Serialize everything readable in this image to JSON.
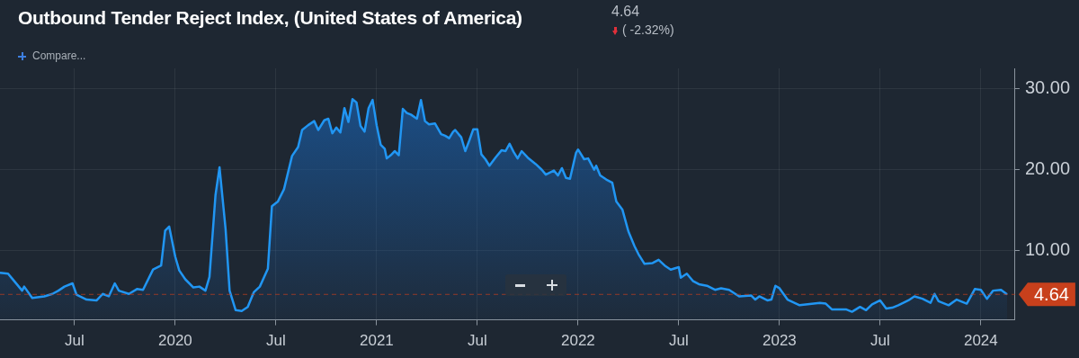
{
  "chart_data": {
    "type": "area",
    "title": "Outbound Tender Reject Index, (United States of America)",
    "annotations": [
      "4.64",
      "( -2.32%)",
      "Compare..."
    ],
    "color": "#2196f3",
    "x": [
      2019.13,
      2019.17,
      2019.19,
      2019.24,
      2019.25,
      2019.29,
      2019.35,
      2019.39,
      2019.42,
      2019.45,
      2019.49,
      2019.51,
      2019.56,
      2019.61,
      2019.64,
      2019.67,
      2019.7,
      2019.72,
      2019.77,
      2019.81,
      2019.84,
      2019.89,
      2019.93,
      2019.95,
      2019.97,
      2020.0,
      2020.02,
      2020.05,
      2020.09,
      2020.12,
      2020.15,
      2020.17,
      2020.2,
      2020.22,
      2020.25,
      2020.27,
      2020.3,
      2020.33,
      2020.36,
      2020.39,
      2020.42,
      2020.46,
      2020.48,
      2020.51,
      2020.54,
      2020.58,
      2020.61,
      2020.63,
      2020.66,
      2020.69,
      2020.71,
      2020.74,
      2020.76,
      2020.78,
      2020.8,
      2020.82,
      2020.84,
      2020.86,
      2020.88,
      2020.9,
      2020.92,
      2020.94,
      2020.96,
      2020.98,
      2021.0,
      2021.02,
      2021.04,
      2021.05,
      2021.07,
      2021.09,
      2021.11,
      2021.13,
      2021.15,
      2021.17,
      2021.2,
      2021.22,
      2021.24,
      2021.26,
      2021.29,
      2021.32,
      2021.34,
      2021.36,
      2021.38,
      2021.39,
      2021.42,
      2021.44,
      2021.46,
      2021.48,
      2021.5,
      2021.52,
      2021.54,
      2021.56,
      2021.59,
      2021.62,
      2021.64,
      2021.66,
      2021.68,
      2021.7,
      2021.72,
      2021.75,
      2021.79,
      2021.82,
      2021.84,
      2021.88,
      2021.9,
      2021.92,
      2021.94,
      2021.96,
      2021.99,
      2022.0,
      2022.03,
      2022.05,
      2022.08,
      2022.09,
      2022.11,
      2022.14,
      2022.17,
      2022.19,
      2022.22,
      2022.25,
      2022.28,
      2022.3,
      2022.33,
      2022.37,
      2022.4,
      2022.43,
      2022.46,
      2022.5,
      2022.51,
      2022.54,
      2022.57,
      2022.6,
      2022.64,
      2022.68,
      2022.71,
      2022.75,
      2022.8,
      2022.86,
      2022.88,
      2022.9,
      2022.94,
      2022.96,
      2022.98,
      2023.0,
      2023.04,
      2023.1,
      2023.2,
      2023.23,
      2023.26,
      2023.33,
      2023.36,
      2023.4,
      2023.43,
      2023.46,
      2023.5,
      2023.53,
      2023.56,
      2023.59,
      2023.64,
      2023.67,
      2023.71,
      2023.75,
      2023.77,
      2023.79,
      2023.84,
      2023.88,
      2023.93,
      2023.97,
      2024.0,
      2024.03,
      2024.06,
      2024.1,
      2024.13
    ],
    "values": [
      7.3,
      7.2,
      6.6,
      5.1,
      5.6,
      4.2,
      4.4,
      4.7,
      5.1,
      5.6,
      6.0,
      4.6,
      4.0,
      3.9,
      4.7,
      4.4,
      6.0,
      5.1,
      4.7,
      5.3,
      5.2,
      7.7,
      8.2,
      12.5,
      13.0,
      9.3,
      7.6,
      6.5,
      5.5,
      5.6,
      5.1,
      6.8,
      16.9,
      20.3,
      12.7,
      5.1,
      2.7,
      2.6,
      3.1,
      4.9,
      5.6,
      7.8,
      15.5,
      16.1,
      17.6,
      21.7,
      22.8,
      24.9,
      25.5,
      26.0,
      24.9,
      26.1,
      26.3,
      24.5,
      25.2,
      24.6,
      27.6,
      25.9,
      28.7,
      28.3,
      25.4,
      24.7,
      27.6,
      28.6,
      25.5,
      23.1,
      22.6,
      21.4,
      21.8,
      22.3,
      21.8,
      27.5,
      27.0,
      26.8,
      26.3,
      28.6,
      26.0,
      25.6,
      25.7,
      24.4,
      24.2,
      23.9,
      24.7,
      24.9,
      24.0,
      22.3,
      23.6,
      25.0,
      25.0,
      21.9,
      21.3,
      20.5,
      21.5,
      22.4,
      22.3,
      23.2,
      22.2,
      21.4,
      22.3,
      21.5,
      20.7,
      20.0,
      19.4,
      19.9,
      19.3,
      20.2,
      19.0,
      18.9,
      22.1,
      22.5,
      21.3,
      21.4,
      20.0,
      20.5,
      19.3,
      18.8,
      18.4,
      16.1,
      15.1,
      12.4,
      10.6,
      9.6,
      8.4,
      8.5,
      8.9,
      8.2,
      7.7,
      8.0,
      6.7,
      7.2,
      6.3,
      5.9,
      5.7,
      5.2,
      5.4,
      5.2,
      4.4,
      4.5,
      4.0,
      4.4,
      3.9,
      4.0,
      5.7,
      5.4,
      4.0,
      3.3,
      3.6,
      3.5,
      2.8,
      2.8,
      2.5,
      3.1,
      2.7,
      3.4,
      3.9,
      2.9,
      3.0,
      3.3,
      3.9,
      4.4,
      4.1,
      3.6,
      4.7,
      3.8,
      3.3,
      4.0,
      3.5,
      5.3,
      5.2,
      4.1,
      5.1,
      5.2,
      4.64
    ],
    "xlim": [
      2019.13,
      2024.17
    ],
    "xticks": [
      {
        "value": 2019.5,
        "label": "Jul"
      },
      2020,
      {
        "value": 2020.5,
        "label": "Jul"
      },
      2021,
      {
        "value": 2021.5,
        "label": "Jul"
      },
      2022,
      {
        "value": 2022.5,
        "label": "Jul"
      },
      2023,
      {
        "value": 2023.5,
        "label": "Jul"
      },
      2024
    ],
    "ylim": [
      1.5,
      32.5
    ],
    "yticks": [
      {
        "value": 10,
        "label": "10.00"
      },
      {
        "value": 20,
        "label": "20.00"
      },
      {
        "value": 30,
        "label": "30.00"
      }
    ],
    "grid": true,
    "ref_lines": [
      {
        "axis": "y",
        "value": 4.64,
        "label": "4.64",
        "color": "#c8401c",
        "line_style": "dashed"
      }
    ]
  }
}
